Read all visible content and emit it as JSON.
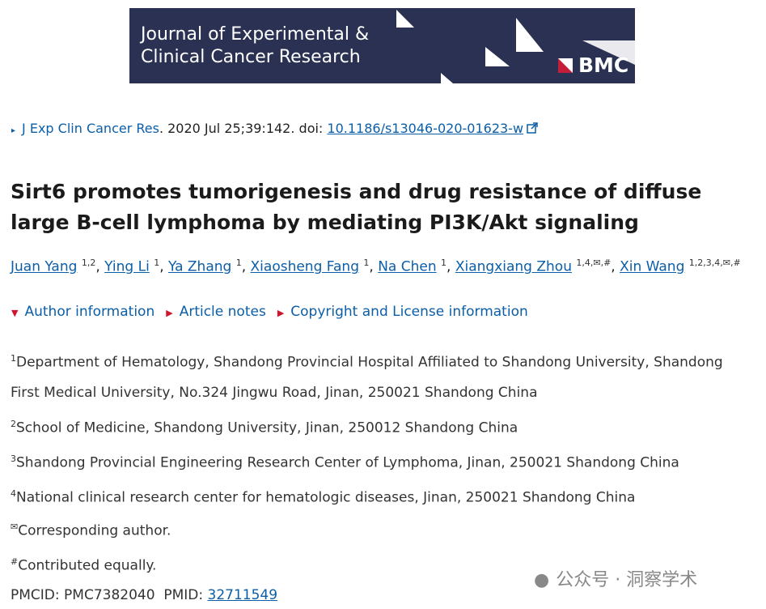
{
  "banner": {
    "line1": "Journal of Experimental &",
    "line2": "Clinical Cancer Research",
    "logo": "BMC"
  },
  "citation": {
    "journal": "J Exp Clin Cancer Res",
    "text": ". 2020 Jul 25;39:142. doi: ",
    "doi": "10.1186/s13046-020-01623-w"
  },
  "title": "Sirt6 promotes tumorigenesis and drug resistance of diffuse large B-cell lymphoma by mediating PI3K/Akt signaling",
  "separator": ", ",
  "authors": [
    {
      "name": "Juan Yang",
      "sup": "1,2"
    },
    {
      "name": "Ying Li",
      "sup": "1"
    },
    {
      "name": "Ya Zhang",
      "sup": "1"
    },
    {
      "name": "Xiaosheng Fang",
      "sup": "1"
    },
    {
      "name": "Na Chen",
      "sup": "1"
    },
    {
      "name": "Xiangxiang Zhou",
      "sup": "1,4,✉,#"
    },
    {
      "name": "Xin Wang",
      "sup": "1,2,3,4,✉,#"
    }
  ],
  "toggles": [
    "Author information",
    "Article notes",
    "Copyright and License information"
  ],
  "affiliations": [
    {
      "num": "1",
      "text": "Department of Hematology, Shandong Provincial Hospital Affiliated to Shandong University, Shandong First Medical University, No.324 Jingwu Road, Jinan, 250021 Shandong China"
    },
    {
      "num": "2",
      "text": "School of Medicine, Shandong University, Jinan, 250012 Shandong China"
    },
    {
      "num": "3",
      "text": "Shandong Provincial Engineering Research Center of Lymphoma, Jinan, 250021 Shandong China"
    },
    {
      "num": "4",
      "text": "National clinical research center for hematologic diseases, Jinan, 250021 Shandong China"
    }
  ],
  "notes": [
    {
      "sym": "✉",
      "text": "Corresponding author."
    },
    {
      "sym": "#",
      "text": "Contributed equally."
    }
  ],
  "ids": {
    "pmcid_label": "PMCID:",
    "pmcid": "PMC7382040",
    "pmid_label": "PMID:",
    "pmid": "32711549"
  },
  "watermark": "公众号 · 洞察学术"
}
